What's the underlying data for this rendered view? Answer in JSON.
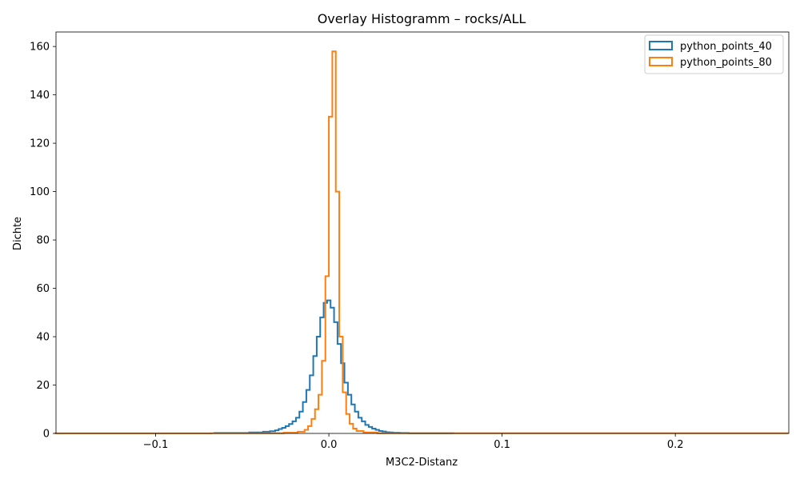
{
  "chart_data": {
    "type": "histogram",
    "title": "Overlay Histogramm – rocks/ALL",
    "xlabel": "M3C2-Distanz",
    "ylabel": "Dichte",
    "xlim": [
      -0.1575,
      0.2655
    ],
    "ylim": [
      0,
      166
    ],
    "xticks": [
      -0.1,
      0.0,
      0.1,
      0.2
    ],
    "xtick_labels": [
      "−0.1",
      "0.0",
      "0.1",
      "0.2"
    ],
    "yticks": [
      0,
      20,
      40,
      60,
      80,
      100,
      120,
      140,
      160
    ],
    "ytick_labels": [
      "0",
      "20",
      "40",
      "60",
      "80",
      "100",
      "120",
      "140",
      "160"
    ],
    "grid": false,
    "legend": "top-right",
    "histtype": "step",
    "series": [
      {
        "name": "python_points_40",
        "color": "#1f77b4",
        "bin_edges": [
          -0.066,
          -0.046,
          -0.038,
          -0.034,
          -0.031,
          -0.029,
          -0.027,
          -0.025,
          -0.023,
          -0.021,
          -0.019,
          -0.017,
          -0.015,
          -0.013,
          -0.011,
          -0.009,
          -0.007,
          -0.005,
          -0.003,
          -0.001,
          0.001,
          0.003,
          0.005,
          0.007,
          0.009,
          0.011,
          0.013,
          0.015,
          0.017,
          0.019,
          0.021,
          0.023,
          0.025,
          0.027,
          0.029,
          0.031,
          0.033,
          0.035,
          0.037,
          0.041,
          0.046,
          0.072
        ],
        "values": [
          0.2,
          0.4,
          0.7,
          0.9,
          1.3,
          1.8,
          2.3,
          3.0,
          3.9,
          5.0,
          6.5,
          9.0,
          13,
          18,
          24,
          32,
          40,
          48,
          54,
          55,
          52,
          46,
          37,
          29,
          21,
          16,
          12,
          9.0,
          6.5,
          5.0,
          3.5,
          2.7,
          2.0,
          1.5,
          1.0,
          0.8,
          0.5,
          0.4,
          0.3,
          0.2,
          0.1
        ]
      },
      {
        "name": "python_points_80",
        "color": "#ff7f0e",
        "bin_edges": [
          -0.158,
          -0.068,
          -0.026,
          -0.018,
          -0.014,
          -0.012,
          -0.01,
          -0.008,
          -0.006,
          -0.004,
          -0.002,
          0.0,
          0.002,
          0.004,
          0.006,
          0.008,
          0.01,
          0.012,
          0.014,
          0.016,
          0.02,
          0.028,
          0.265
        ],
        "values": [
          0.05,
          0.1,
          0.3,
          0.7,
          1.5,
          3.0,
          6.0,
          10,
          16,
          30,
          65,
          131,
          158,
          100,
          40,
          17,
          8,
          4,
          2,
          1,
          0.4,
          0.1
        ]
      }
    ]
  }
}
